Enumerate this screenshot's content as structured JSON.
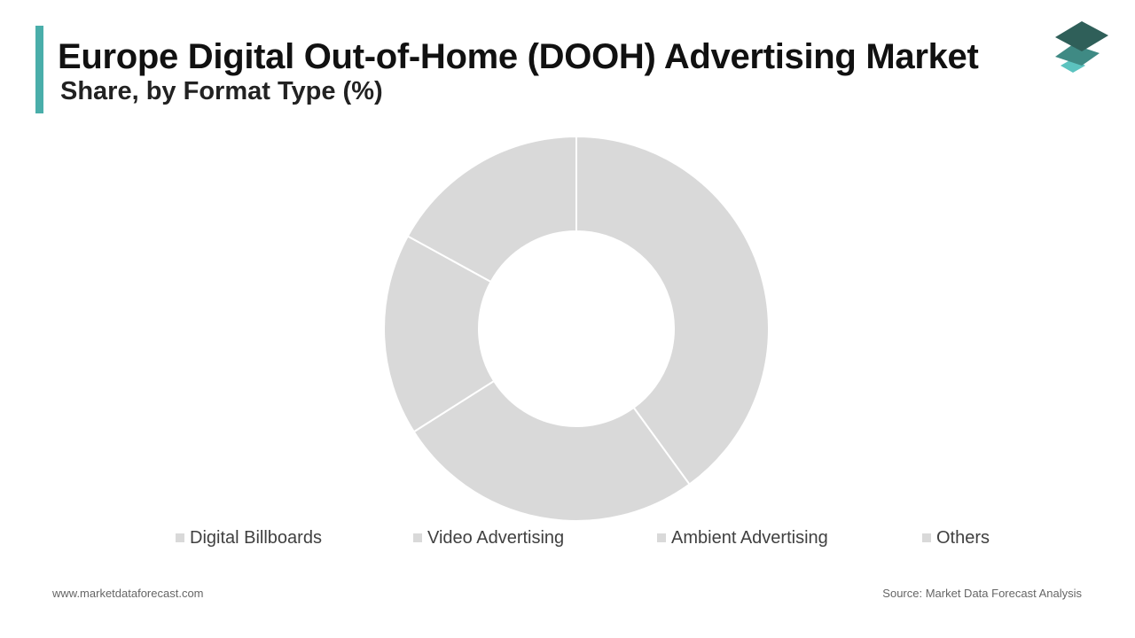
{
  "header": {
    "title": "Europe Digital Out-of-Home (DOOH) Advertising Market",
    "subtitle": "Share, by Format Type (%)"
  },
  "colors": {
    "accent": "#4aaeaa",
    "slice": "#d9d9d9",
    "slice_border": "#ffffff",
    "logo_top": "#2f5f59",
    "logo_middle": "#3f8a84",
    "logo_bottom": "#5cc3bf"
  },
  "chart_data": {
    "type": "pie",
    "variant": "donut",
    "categories": [
      "Digital Billboards",
      "Video Advertising",
      "Ambient Advertising",
      "Others"
    ],
    "values": [
      40,
      26,
      17,
      17
    ],
    "unit": "%",
    "title": "Europe Digital Out-of-Home (DOOH) Advertising Market",
    "subtitle": "Share, by Format Type (%)",
    "legend_placement": "bottom"
  },
  "footer": {
    "website": "www.marketdataforecast.com",
    "source": "Source: Market Data Forecast Analysis"
  }
}
